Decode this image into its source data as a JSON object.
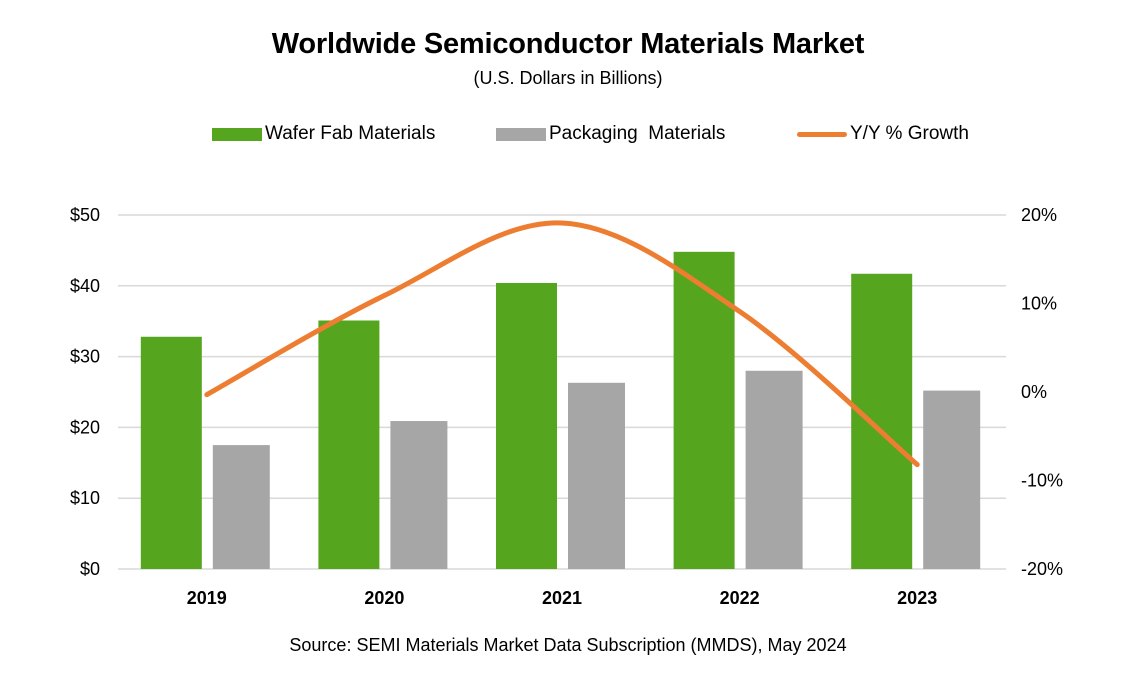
{
  "chart_data": {
    "type": "bar",
    "title": "Worldwide Semiconductor Materials Market",
    "subtitle": "(U.S. Dollars in Billions)",
    "source": "Source:  SEMI Materials Market Data Subscription (MMDS), May 2024",
    "categories": [
      "2019",
      "2020",
      "2021",
      "2022",
      "2023"
    ],
    "series": [
      {
        "name": "Wafer Fab Materials",
        "type": "bar",
        "axis": "left",
        "color": "#56a51f",
        "values": [
          32.8,
          35.1,
          40.4,
          44.8,
          41.7
        ]
      },
      {
        "name": "Packaging  Materials",
        "type": "bar",
        "axis": "left",
        "color": "#a6a6a6",
        "values": [
          17.5,
          20.9,
          26.3,
          28.0,
          25.2
        ]
      },
      {
        "name": "Y/Y % Growth",
        "type": "line",
        "axis": "right",
        "color": "#ed7d31",
        "smooth": true,
        "values": [
          -0.3,
          10.9,
          19.1,
          9.1,
          -8.2
        ]
      }
    ],
    "y_left": {
      "label": "",
      "range": [
        0,
        50
      ],
      "ticks": [
        0,
        10,
        20,
        30,
        40,
        50
      ],
      "tick_labels": [
        "$0",
        "$10",
        "$20",
        "$30",
        "$40",
        "$50"
      ]
    },
    "y_right": {
      "label": "",
      "range": [
        -20,
        20
      ],
      "ticks": [
        -20,
        -10,
        0,
        10,
        20
      ],
      "tick_labels": [
        "-20%",
        "-10%",
        "0%",
        "10%",
        "20%"
      ]
    },
    "xlabel": "",
    "grid": true,
    "legend": "top-center",
    "gridline_color": "#d9d9d9"
  }
}
